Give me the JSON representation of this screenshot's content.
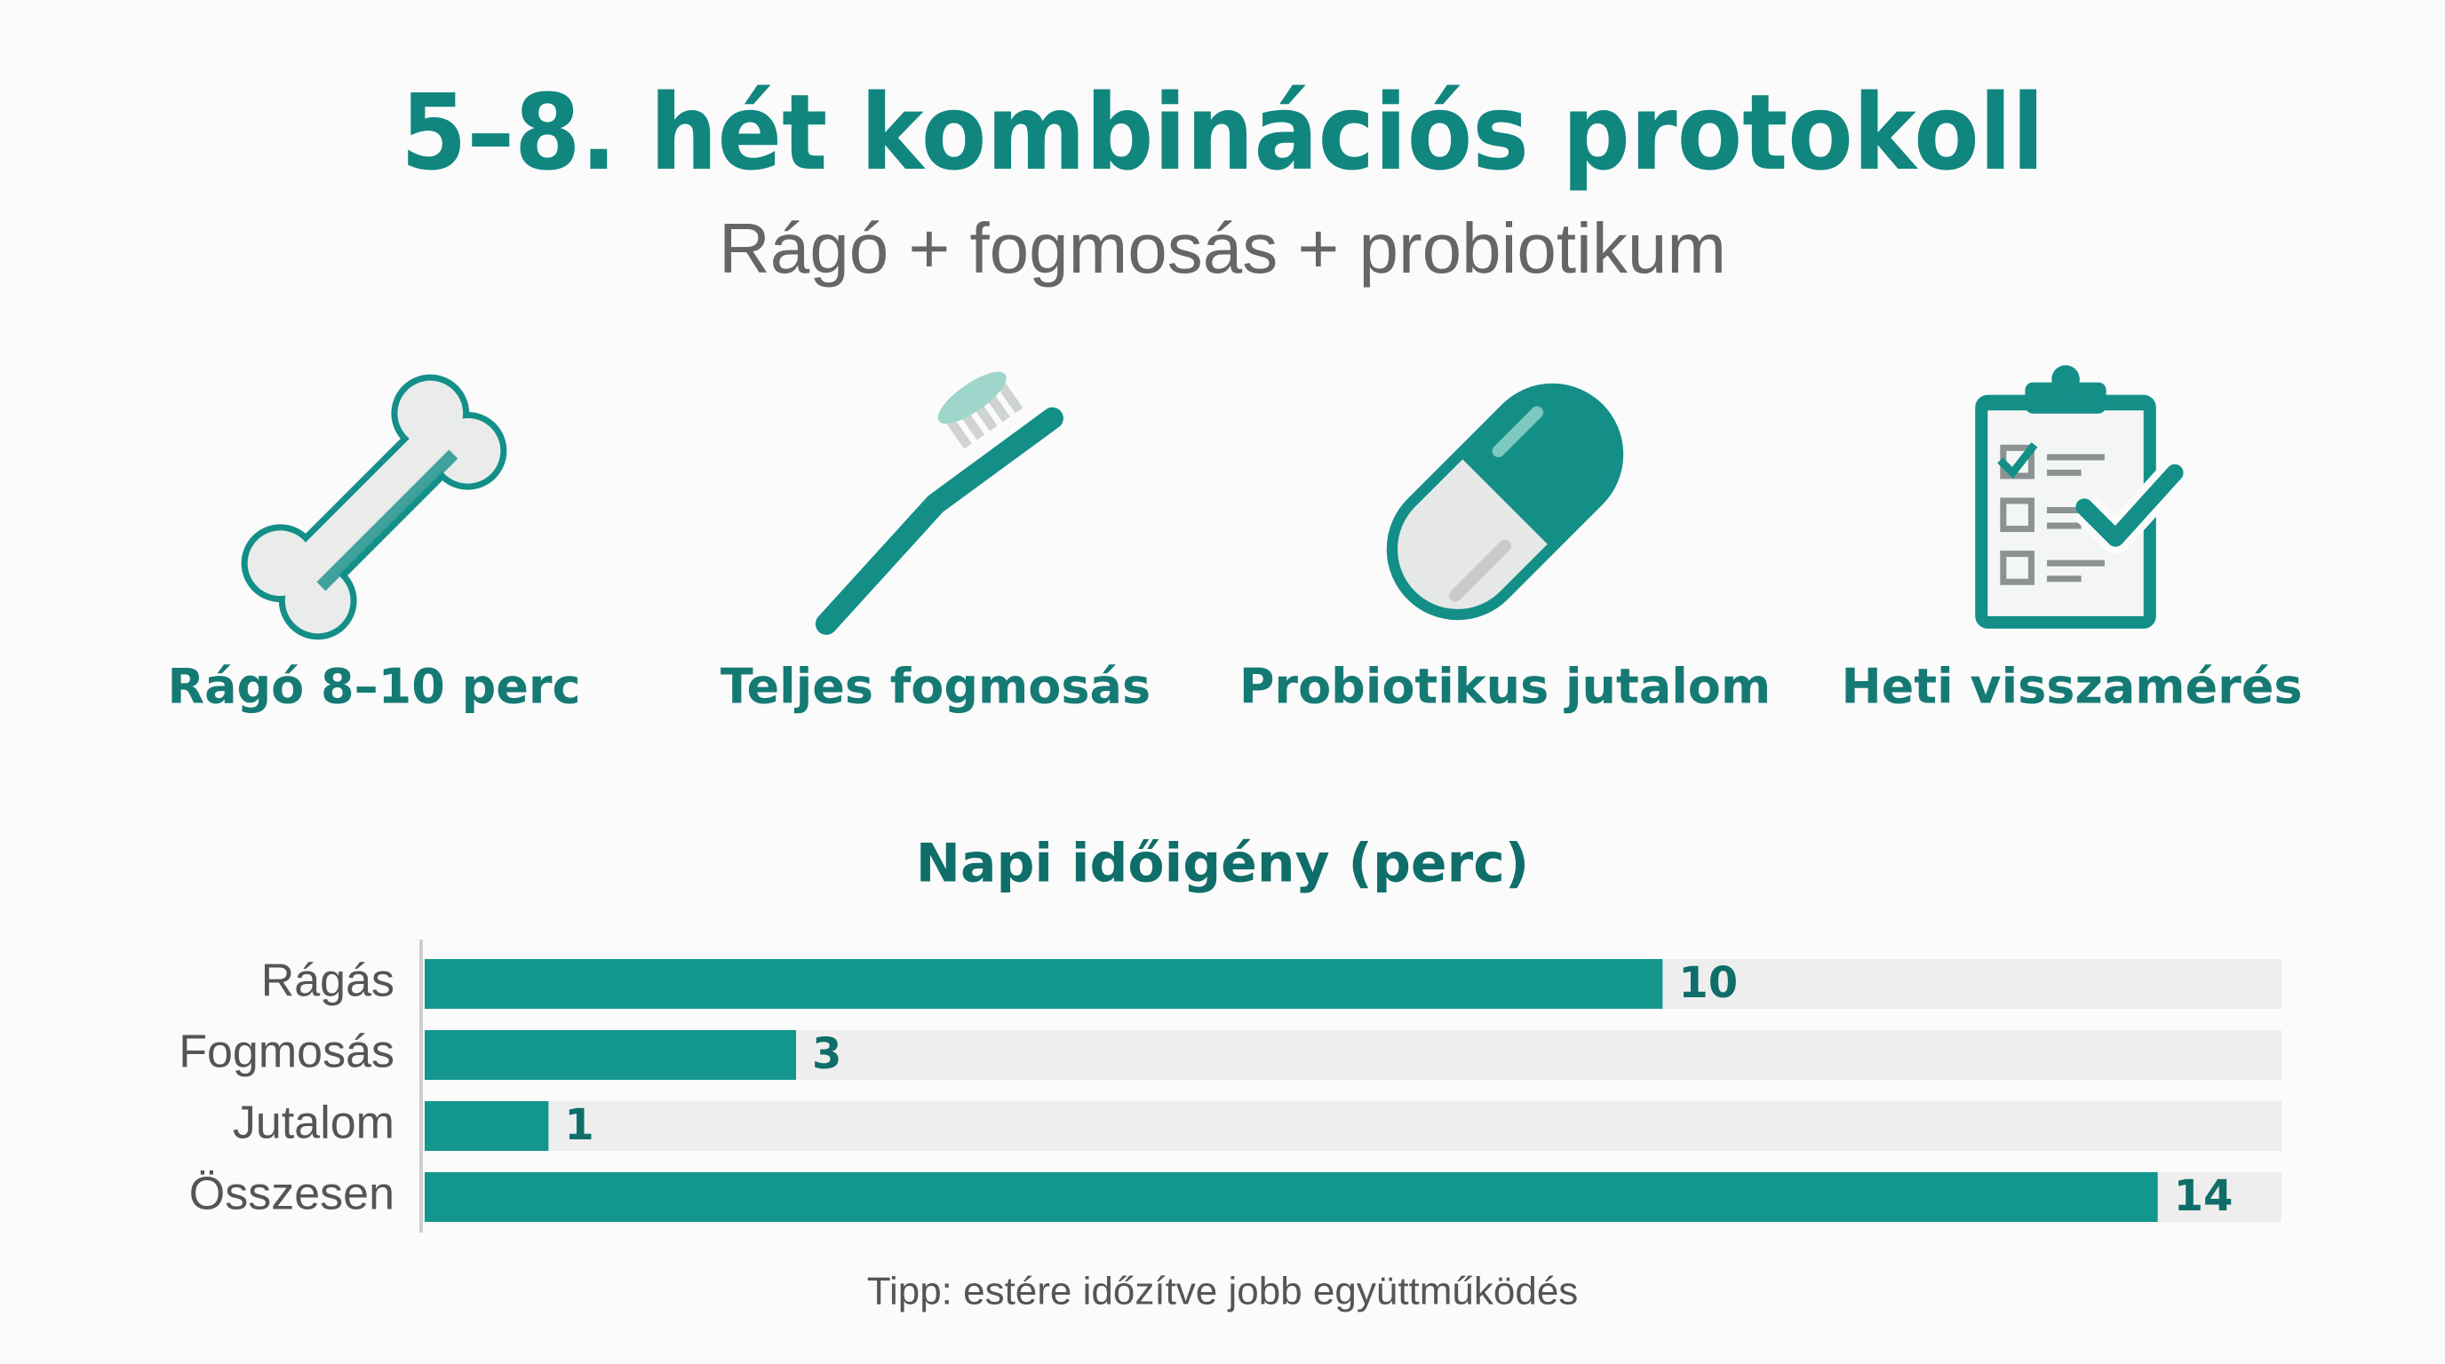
{
  "header": {
    "title": "5–8. hét kombinációs protokoll",
    "subtitle": "Rágó + fogmosás + probiotikum"
  },
  "steps": [
    {
      "label": "Rágó 8–10 perc"
    },
    {
      "label": "Teljes fogmosás"
    },
    {
      "label": "Probiotikus jutalom"
    },
    {
      "label": "Heti visszamérés"
    }
  ],
  "chart_data": {
    "type": "hbar",
    "title": "Napi időigény (perc)",
    "categories": [
      "Rágás",
      "Fogmosás",
      "Jutalom",
      "Összesen"
    ],
    "values": [
      10,
      3,
      1,
      14
    ],
    "color": "#12968e",
    "xlim": [
      0,
      15
    ]
  },
  "footer": {
    "tip": "Tipp: estére időzítve jobb együttműködés"
  }
}
